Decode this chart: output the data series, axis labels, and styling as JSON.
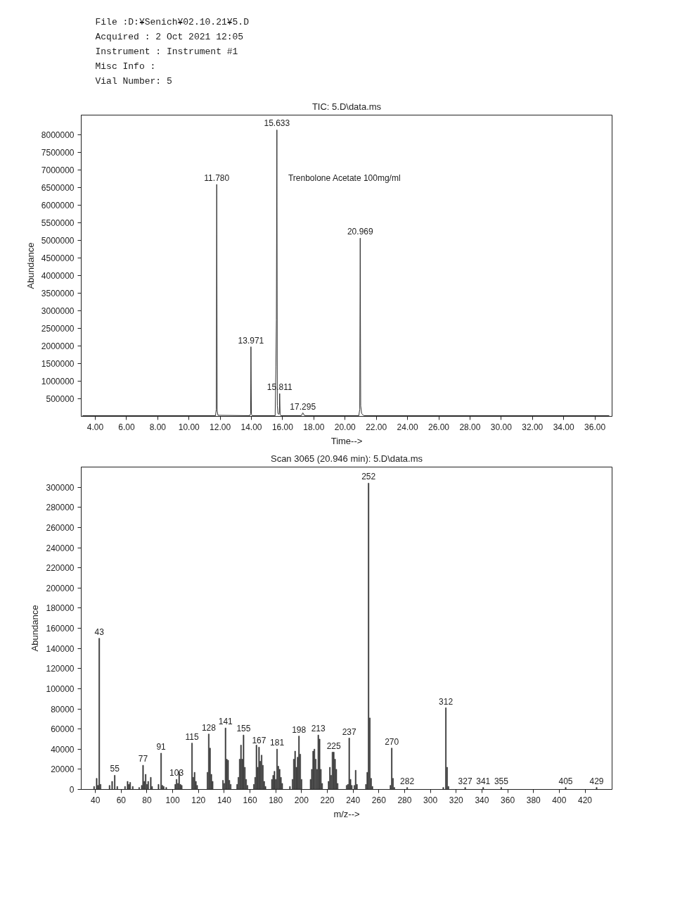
{
  "chart_data": [
    {
      "type": "other",
      "annotations": [
        "File :D:¥Senich¥02.10.21¥5.D",
        "Acquired : 2 Oct 2021 12:05",
        "Instrument : Instrument #1",
        "Misc Info :",
        "Vial Number: 5"
      ]
    },
    {
      "type": "line",
      "title": "TIC: 5.D\\data.ms",
      "xlabel": "Time-->",
      "ylabel": "Abundance",
      "color": "#333333",
      "x": [
        3.2,
        11.7,
        11.75,
        11.78,
        11.81,
        11.86,
        13.9,
        13.95,
        13.971,
        14.0,
        14.05,
        15.52,
        15.57,
        15.6,
        15.633,
        15.66,
        15.7,
        15.76,
        15.79,
        15.811,
        15.84,
        15.89,
        17.2,
        17.295,
        17.4,
        20.88,
        20.94,
        20.969,
        21.0,
        21.06,
        21.2,
        36.9
      ],
      "values": [
        20000,
        20000,
        200000,
        6600000,
        150000,
        30000,
        20000,
        80000,
        1980000,
        60000,
        20000,
        20000,
        1430000,
        2740000,
        8150000,
        300000,
        80000,
        60000,
        100000,
        650000,
        60000,
        20000,
        20000,
        100000,
        20000,
        20000,
        200000,
        5070000,
        300000,
        80000,
        20000,
        20000
      ],
      "xlim": [
        3.1,
        37.1
      ],
      "ylim": [
        0,
        8570000
      ],
      "xticks": [
        {
          "value": 4,
          "label": "4.00"
        },
        {
          "value": 6,
          "label": "6.00"
        },
        {
          "value": 8,
          "label": "8.00"
        },
        {
          "value": 10,
          "label": "10.00"
        },
        {
          "value": 12,
          "label": "12.00"
        },
        {
          "value": 14,
          "label": "14.00"
        },
        {
          "value": 16,
          "label": "16.00"
        },
        {
          "value": 18,
          "label": "18.00"
        },
        {
          "value": 20,
          "label": "20.00"
        },
        {
          "value": 22,
          "label": "22.00"
        },
        {
          "value": 24,
          "label": "24.00"
        },
        {
          "value": 26,
          "label": "26.00"
        },
        {
          "value": 28,
          "label": "28.00"
        },
        {
          "value": 30,
          "label": "30.00"
        },
        {
          "value": 32,
          "label": "32.00"
        },
        {
          "value": 34,
          "label": "34.00"
        },
        {
          "value": 36,
          "label": "36.00"
        }
      ],
      "yticks": [
        500000,
        1000000,
        1500000,
        2000000,
        2500000,
        3000000,
        3500000,
        4000000,
        4500000,
        5000000,
        5500000,
        6000000,
        6500000,
        7000000,
        7500000,
        8000000
      ],
      "annotations": [
        {
          "text": "11.780",
          "x": 11.78,
          "y": 6600000
        },
        {
          "text": "13.971",
          "x": 13.971,
          "y": 1980000
        },
        {
          "text": "15.633",
          "x": 15.633,
          "y": 8150000
        },
        {
          "text": "15.811",
          "x": 15.811,
          "y": 650000
        },
        {
          "text": "17.295",
          "x": 17.295,
          "y": 100000
        },
        {
          "text": "20.969",
          "x": 20.969,
          "y": 5070000
        },
        "Trenbolone Acetate 100mg/ml"
      ]
    },
    {
      "type": "bar",
      "title": "Scan 3065 (20.946 min): 5.D\\data.ms",
      "xlabel": "m/z-->",
      "ylabel": "Abundance",
      "color": "#333333",
      "x": [
        39,
        41,
        42,
        43,
        44,
        51,
        53,
        55,
        57,
        63,
        65,
        66,
        67,
        69,
        74,
        76,
        77,
        78,
        79,
        80,
        81,
        83,
        84,
        89,
        91,
        92,
        93,
        95,
        102,
        103,
        104,
        105,
        106,
        107,
        115,
        116,
        117,
        118,
        119,
        127,
        128,
        129,
        130,
        131,
        139,
        140,
        141,
        142,
        143,
        144,
        145,
        150,
        151,
        152,
        153,
        154,
        155,
        156,
        157,
        158,
        163,
        164,
        165,
        166,
        167,
        168,
        169,
        170,
        171,
        172,
        177,
        178,
        179,
        180,
        181,
        182,
        183,
        184,
        185,
        191,
        193,
        194,
        195,
        196,
        197,
        198,
        199,
        200,
        207,
        208,
        209,
        210,
        211,
        212,
        213,
        214,
        215,
        216,
        221,
        222,
        223,
        224,
        225,
        226,
        227,
        228,
        235,
        236,
        237,
        238,
        239,
        241,
        242,
        243,
        250,
        251,
        252,
        253,
        254,
        255,
        269,
        270,
        271,
        272,
        282,
        310,
        312,
        313,
        314,
        327,
        341,
        355,
        405,
        429
      ],
      "values": [
        3000,
        11000,
        4000,
        150000,
        5000,
        4000,
        8000,
        14000,
        3000,
        3000,
        8000,
        5000,
        7000,
        3000,
        2000,
        4000,
        24000,
        8000,
        15000,
        5000,
        8000,
        12000,
        3000,
        5000,
        36000,
        4000,
        3000,
        2000,
        5000,
        10000,
        6000,
        18000,
        5000,
        4000,
        46000,
        12000,
        17000,
        8000,
        4000,
        17000,
        55000,
        41000,
        15000,
        8000,
        9000,
        6000,
        61000,
        30000,
        29000,
        9000,
        5000,
        5000,
        12000,
        30000,
        44000,
        30000,
        54000,
        22000,
        10000,
        4000,
        5000,
        12000,
        44000,
        22000,
        42000,
        28000,
        34000,
        24000,
        8000,
        3000,
        10000,
        14000,
        18000,
        10000,
        40000,
        23000,
        20000,
        12000,
        6000,
        3000,
        10000,
        30000,
        38000,
        22000,
        32000,
        53000,
        35000,
        10000,
        10000,
        20000,
        38000,
        40000,
        30000,
        20000,
        54000,
        50000,
        20000,
        6000,
        8000,
        22000,
        14000,
        37000,
        37000,
        30000,
        20000,
        6000,
        4000,
        5000,
        51000,
        10000,
        4000,
        4000,
        19000,
        5000,
        5000,
        17000,
        304000,
        71000,
        11000,
        3000,
        4000,
        41000,
        11000,
        2000,
        2000,
        2000,
        81000,
        22000,
        3000,
        2000,
        2000,
        2000,
        2000,
        2000
      ],
      "xlim": [
        29,
        441
      ],
      "ylim": [
        0,
        320000
      ],
      "xticks": [
        40,
        60,
        80,
        100,
        120,
        140,
        160,
        180,
        200,
        220,
        240,
        260,
        280,
        300,
        320,
        340,
        360,
        380,
        400,
        420
      ],
      "yticks": [
        0,
        20000,
        40000,
        60000,
        80000,
        100000,
        120000,
        140000,
        160000,
        180000,
        200000,
        220000,
        240000,
        260000,
        280000,
        300000
      ],
      "annotations": [
        {
          "text": "43",
          "x": 43,
          "y": 150000
        },
        {
          "text": "55",
          "x": 55,
          "y": 14000
        },
        {
          "text": "77",
          "x": 77,
          "y": 24000
        },
        {
          "text": "91",
          "x": 91,
          "y": 36000
        },
        {
          "text": "103",
          "x": 103,
          "y": 10000
        },
        {
          "text": "115",
          "x": 115,
          "y": 46000
        },
        {
          "text": "128",
          "x": 128,
          "y": 55000
        },
        {
          "text": "141",
          "x": 141,
          "y": 61000
        },
        {
          "text": "155",
          "x": 155,
          "y": 54000
        },
        {
          "text": "167",
          "x": 167,
          "y": 42000
        },
        {
          "text": "181",
          "x": 181,
          "y": 40000
        },
        {
          "text": "198",
          "x": 198,
          "y": 53000
        },
        {
          "text": "213",
          "x": 213,
          "y": 54000
        },
        {
          "text": "225",
          "x": 225,
          "y": 37000
        },
        {
          "text": "237",
          "x": 237,
          "y": 51000
        },
        {
          "text": "252",
          "x": 252,
          "y": 304000
        },
        {
          "text": "270",
          "x": 270,
          "y": 41000
        },
        {
          "text": "282",
          "x": 282,
          "y": 2000
        },
        {
          "text": "312",
          "x": 312,
          "y": 81000
        },
        {
          "text": "327",
          "x": 327,
          "y": 2000
        },
        {
          "text": "341",
          "x": 341,
          "y": 2000
        },
        {
          "text": "355",
          "x": 355,
          "y": 2000
        },
        {
          "text": "405",
          "x": 405,
          "y": 2000
        },
        {
          "text": "429",
          "x": 429,
          "y": 2000
        }
      ]
    }
  ]
}
